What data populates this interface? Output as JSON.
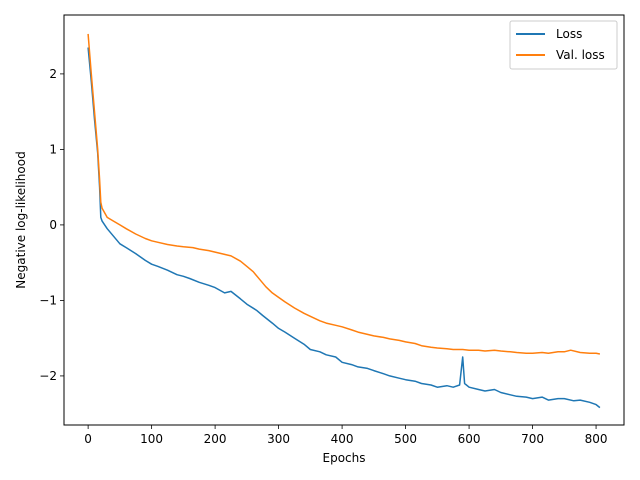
{
  "chart_data": {
    "type": "line",
    "title": "",
    "xlabel": "Epochs",
    "ylabel": "Negative log-likelihood",
    "xlim": [
      -38,
      844
    ],
    "ylim": [
      -2.65,
      2.78
    ],
    "xticks": [
      0,
      100,
      200,
      300,
      400,
      500,
      600,
      700,
      800
    ],
    "yticks": [
      -2,
      -1,
      0,
      1,
      2
    ],
    "grid": false,
    "legend": "top-right",
    "series": [
      {
        "name": "Loss",
        "color": "#1f77b4",
        "points": [
          [
            0,
            2.35
          ],
          [
            5,
            1.9
          ],
          [
            10,
            1.4
          ],
          [
            15,
            0.95
          ],
          [
            18,
            0.5
          ],
          [
            20,
            0.1
          ],
          [
            22,
            0.05
          ],
          [
            30,
            -0.05
          ],
          [
            40,
            -0.15
          ],
          [
            50,
            -0.25
          ],
          [
            60,
            -0.3
          ],
          [
            75,
            -0.38
          ],
          [
            90,
            -0.47
          ],
          [
            100,
            -0.52
          ],
          [
            110,
            -0.55
          ],
          [
            125,
            -0.6
          ],
          [
            140,
            -0.66
          ],
          [
            150,
            -0.68
          ],
          [
            160,
            -0.71
          ],
          [
            175,
            -0.76
          ],
          [
            190,
            -0.8
          ],
          [
            200,
            -0.83
          ],
          [
            215,
            -0.9
          ],
          [
            225,
            -0.88
          ],
          [
            240,
            -0.98
          ],
          [
            250,
            -1.05
          ],
          [
            265,
            -1.13
          ],
          [
            275,
            -1.2
          ],
          [
            290,
            -1.3
          ],
          [
            300,
            -1.37
          ],
          [
            310,
            -1.42
          ],
          [
            325,
            -1.5
          ],
          [
            340,
            -1.58
          ],
          [
            350,
            -1.65
          ],
          [
            365,
            -1.68
          ],
          [
            375,
            -1.72
          ],
          [
            390,
            -1.75
          ],
          [
            400,
            -1.82
          ],
          [
            415,
            -1.85
          ],
          [
            425,
            -1.88
          ],
          [
            440,
            -1.9
          ],
          [
            450,
            -1.93
          ],
          [
            465,
            -1.97
          ],
          [
            475,
            -2.0
          ],
          [
            490,
            -2.03
          ],
          [
            500,
            -2.05
          ],
          [
            515,
            -2.07
          ],
          [
            525,
            -2.1
          ],
          [
            540,
            -2.12
          ],
          [
            550,
            -2.15
          ],
          [
            565,
            -2.13
          ],
          [
            575,
            -2.15
          ],
          [
            585,
            -2.12
          ],
          [
            590,
            -1.75
          ],
          [
            593,
            -2.1
          ],
          [
            600,
            -2.15
          ],
          [
            615,
            -2.18
          ],
          [
            625,
            -2.2
          ],
          [
            640,
            -2.18
          ],
          [
            650,
            -2.22
          ],
          [
            665,
            -2.25
          ],
          [
            675,
            -2.27
          ],
          [
            690,
            -2.28
          ],
          [
            700,
            -2.3
          ],
          [
            715,
            -2.28
          ],
          [
            725,
            -2.32
          ],
          [
            740,
            -2.3
          ],
          [
            750,
            -2.3
          ],
          [
            765,
            -2.33
          ],
          [
            775,
            -2.32
          ],
          [
            790,
            -2.35
          ],
          [
            800,
            -2.38
          ],
          [
            806,
            -2.42
          ]
        ]
      },
      {
        "name": "Val. loss",
        "color": "#ff7f0e",
        "points": [
          [
            0,
            2.53
          ],
          [
            5,
            2.0
          ],
          [
            10,
            1.5
          ],
          [
            15,
            1.0
          ],
          [
            18,
            0.6
          ],
          [
            20,
            0.3
          ],
          [
            22,
            0.22
          ],
          [
            30,
            0.1
          ],
          [
            40,
            0.05
          ],
          [
            50,
            0.0
          ],
          [
            60,
            -0.05
          ],
          [
            75,
            -0.12
          ],
          [
            90,
            -0.18
          ],
          [
            100,
            -0.21
          ],
          [
            110,
            -0.23
          ],
          [
            125,
            -0.26
          ],
          [
            140,
            -0.28
          ],
          [
            150,
            -0.29
          ],
          [
            165,
            -0.3
          ],
          [
            175,
            -0.32
          ],
          [
            190,
            -0.34
          ],
          [
            200,
            -0.36
          ],
          [
            215,
            -0.39
          ],
          [
            225,
            -0.41
          ],
          [
            240,
            -0.48
          ],
          [
            250,
            -0.55
          ],
          [
            260,
            -0.62
          ],
          [
            270,
            -0.72
          ],
          [
            280,
            -0.82
          ],
          [
            290,
            -0.9
          ],
          [
            300,
            -0.96
          ],
          [
            310,
            -1.02
          ],
          [
            325,
            -1.1
          ],
          [
            340,
            -1.17
          ],
          [
            350,
            -1.21
          ],
          [
            365,
            -1.27
          ],
          [
            375,
            -1.3
          ],
          [
            390,
            -1.33
          ],
          [
            400,
            -1.35
          ],
          [
            415,
            -1.39
          ],
          [
            425,
            -1.42
          ],
          [
            440,
            -1.45
          ],
          [
            450,
            -1.47
          ],
          [
            465,
            -1.49
          ],
          [
            475,
            -1.51
          ],
          [
            490,
            -1.53
          ],
          [
            500,
            -1.55
          ],
          [
            515,
            -1.57
          ],
          [
            525,
            -1.6
          ],
          [
            540,
            -1.62
          ],
          [
            550,
            -1.63
          ],
          [
            565,
            -1.64
          ],
          [
            575,
            -1.65
          ],
          [
            590,
            -1.65
          ],
          [
            600,
            -1.66
          ],
          [
            615,
            -1.66
          ],
          [
            625,
            -1.67
          ],
          [
            640,
            -1.66
          ],
          [
            650,
            -1.67
          ],
          [
            665,
            -1.68
          ],
          [
            675,
            -1.69
          ],
          [
            690,
            -1.7
          ],
          [
            700,
            -1.7
          ],
          [
            715,
            -1.69
          ],
          [
            725,
            -1.7
          ],
          [
            740,
            -1.68
          ],
          [
            750,
            -1.68
          ],
          [
            760,
            -1.66
          ],
          [
            775,
            -1.69
          ],
          [
            790,
            -1.7
          ],
          [
            800,
            -1.7
          ],
          [
            806,
            -1.71
          ]
        ]
      }
    ]
  }
}
